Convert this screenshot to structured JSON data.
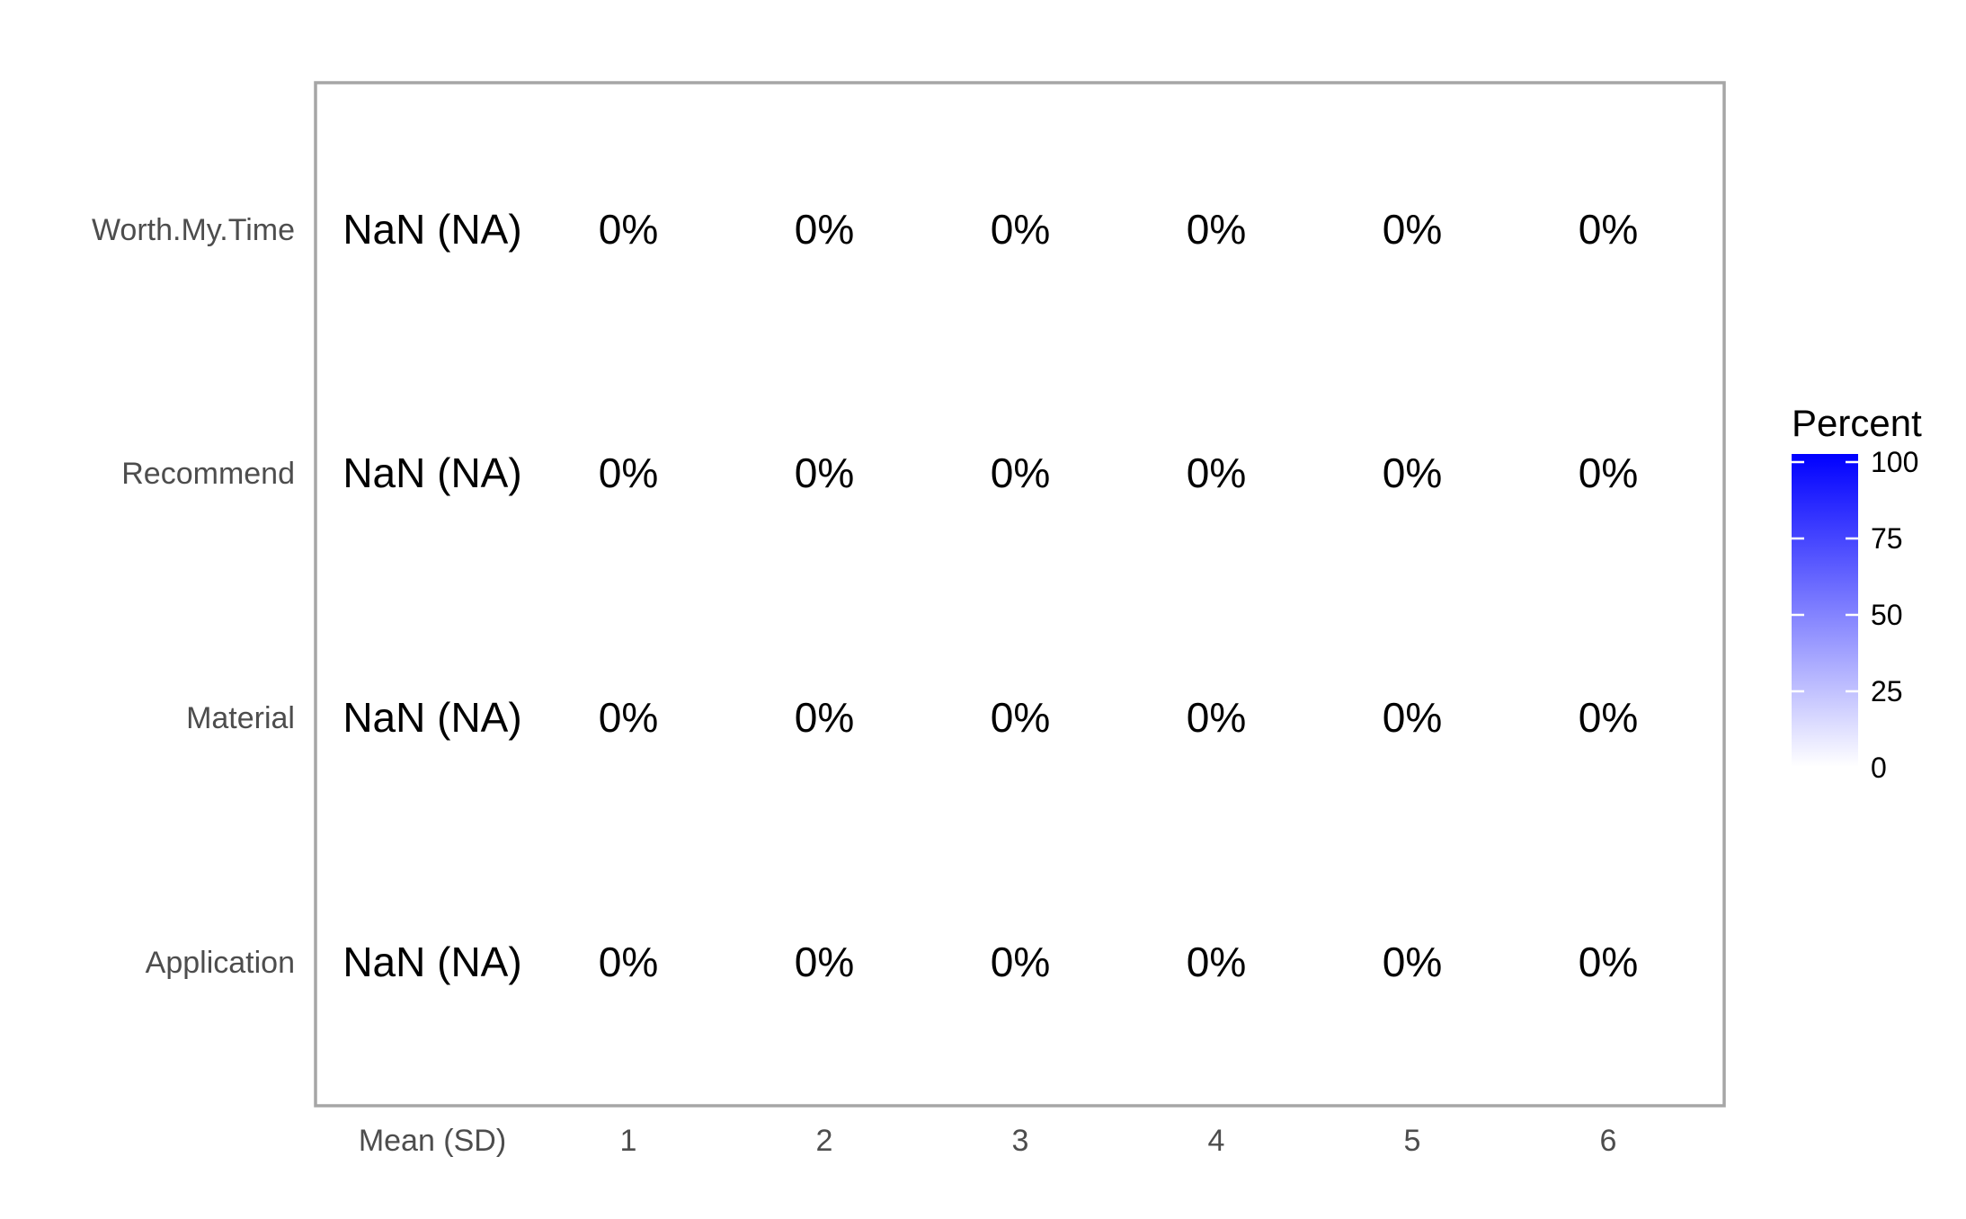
{
  "chart_data": {
    "type": "heatmap",
    "columns": [
      "Mean (SD)",
      "1",
      "2",
      "3",
      "4",
      "5",
      "6"
    ],
    "rows": [
      "Worth.My.Time",
      "Recommend",
      "Material",
      "Application"
    ],
    "mean_sd_labels": [
      "NaN (NA)",
      "NaN (NA)",
      "NaN (NA)",
      "NaN (NA)"
    ],
    "percent_values": [
      [
        0,
        0,
        0,
        0,
        0,
        0
      ],
      [
        0,
        0,
        0,
        0,
        0,
        0
      ],
      [
        0,
        0,
        0,
        0,
        0,
        0
      ],
      [
        0,
        0,
        0,
        0,
        0,
        0
      ]
    ],
    "cell_labels": [
      [
        "0%",
        "0%",
        "0%",
        "0%",
        "0%",
        "0%"
      ],
      [
        "0%",
        "0%",
        "0%",
        "0%",
        "0%",
        "0%"
      ],
      [
        "0%",
        "0%",
        "0%",
        "0%",
        "0%",
        "0%"
      ],
      [
        "0%",
        "0%",
        "0%",
        "0%",
        "0%",
        "0%"
      ]
    ],
    "legend": {
      "title": "Percent",
      "ticks": [
        "0",
        "25",
        "50",
        "75",
        "100"
      ],
      "range": [
        0,
        100
      ],
      "low_color": "#ffffff",
      "high_color": "#0000ff",
      "placement": "right"
    },
    "grid": false
  }
}
